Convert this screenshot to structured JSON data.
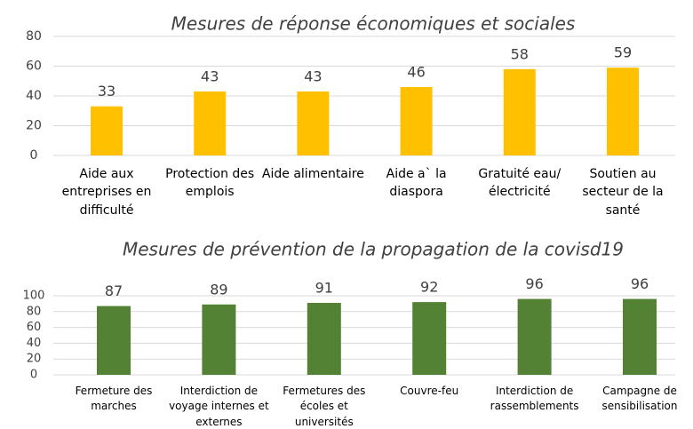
{
  "chart_data": [
    {
      "type": "bar",
      "title": "Mesures de réponse économiques et sociales",
      "categories": [
        "Aide aux entreprises en difficulté",
        "Protection des emplois",
        "Aide alimentaire",
        "Aide a` la diaspora",
        "Gratuité eau/électricité",
        "Soutien au secteur de la santé"
      ],
      "values": [
        33,
        43,
        43,
        46,
        58,
        59
      ],
      "color": "#ffc000",
      "ylim": [
        0,
        80
      ],
      "yticks": [
        0,
        20,
        40,
        60,
        80
      ],
      "grid": true
    },
    {
      "type": "bar",
      "title": "Mesures de prévention de la propagation de la covisd19",
      "categories": [
        "Fermeture des marches",
        "Interdiction de voyage internes et externes",
        "Fermetures des écoles et universités",
        "Couvre-feu",
        "Interdiction de rassemblements",
        "Campagne de sensibilisation"
      ],
      "values": [
        87,
        89,
        91,
        92,
        96,
        96
      ],
      "color": "#548235",
      "ylim": [
        0,
        100
      ],
      "yticks": [
        0,
        20,
        40,
        60,
        80,
        100
      ],
      "grid": true
    }
  ]
}
